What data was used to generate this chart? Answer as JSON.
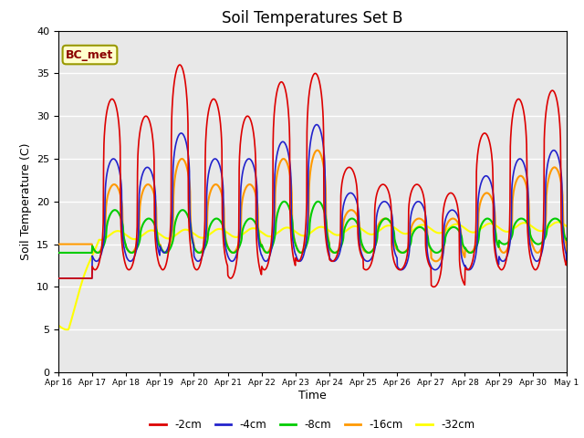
{
  "title": "Soil Temperatures Set B",
  "xlabel": "Time",
  "ylabel": "Soil Temperature (C)",
  "ylim": [
    0,
    40
  ],
  "yticks": [
    0,
    5,
    10,
    15,
    20,
    25,
    30,
    35,
    40
  ],
  "annotation": "BC_met",
  "bg_color": "#e8e8e8",
  "series_colors": {
    "-2cm": "#dd0000",
    "-4cm": "#2222cc",
    "-8cm": "#00cc00",
    "-16cm": "#ff9900",
    "-32cm": "#ffff00"
  },
  "x_tick_labels": [
    "Apr 16",
    "Apr 17",
    "Apr 18",
    "Apr 19",
    "Apr 20",
    "Apr 21",
    "Apr 22",
    "Apr 23",
    "Apr 24",
    "Apr 25",
    "Apr 26",
    "Apr 27",
    "Apr 28",
    "Apr 29",
    "Apr 30",
    "May 1"
  ]
}
